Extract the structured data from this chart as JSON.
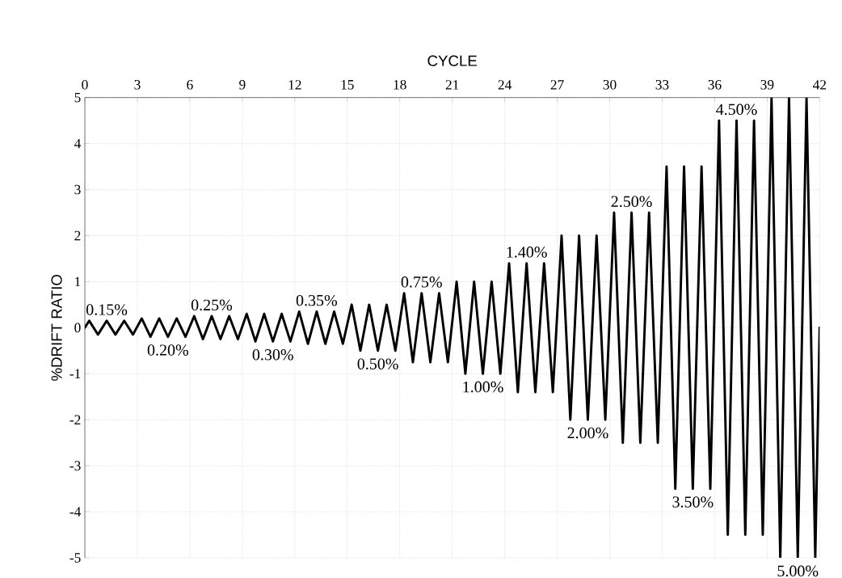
{
  "chart_data": {
    "type": "line",
    "xlabel": "CYCLE",
    "ylabel": "%DRIFT  RATIO",
    "x": [
      0,
      0.25,
      0.75,
      1.25,
      1.75,
      2.25,
      2.75,
      3.25,
      3.75,
      4.25,
      4.75,
      5.25,
      5.75,
      6.25,
      6.75,
      7.25,
      7.75,
      8.25,
      8.75,
      9.25,
      9.75,
      10.25,
      10.75,
      11.25,
      11.75,
      12.25,
      12.75,
      13.25,
      13.75,
      14.25,
      14.75,
      15.25,
      15.75,
      16.25,
      16.75,
      17.25,
      17.75,
      18.25,
      18.75,
      19.25,
      19.75,
      20.25,
      20.75,
      21.25,
      21.75,
      22.25,
      22.75,
      23.25,
      23.75,
      24.25,
      24.75,
      25.25,
      25.75,
      26.25,
      26.75,
      27.25,
      27.75,
      28.25,
      28.75,
      29.25,
      29.75,
      30.25,
      30.75,
      31.25,
      31.75,
      32.25,
      32.75,
      33.25,
      33.75,
      34.25,
      34.75,
      35.25,
      35.75,
      36.25,
      36.75,
      37.25,
      37.75,
      38.25,
      38.75,
      39.25,
      39.75,
      40.25,
      40.75,
      41.25,
      41.75,
      42
    ],
    "series": [
      {
        "color": "#000000",
        "values": [
          0,
          0.15,
          -0.15,
          0.15,
          -0.15,
          0.15,
          -0.15,
          0.2,
          -0.2,
          0.2,
          -0.2,
          0.2,
          -0.2,
          0.25,
          -0.25,
          0.25,
          -0.25,
          0.25,
          -0.25,
          0.3,
          -0.3,
          0.3,
          -0.3,
          0.3,
          -0.3,
          0.35,
          -0.35,
          0.35,
          -0.35,
          0.35,
          -0.35,
          0.5,
          -0.5,
          0.5,
          -0.5,
          0.5,
          -0.5,
          0.75,
          -0.75,
          0.75,
          -0.75,
          0.75,
          -0.75,
          1,
          -1,
          1,
          -1,
          1,
          -1,
          1.4,
          -1.4,
          1.4,
          -1.4,
          1.4,
          -1.4,
          2,
          -2,
          2,
          -2,
          2,
          -2,
          2.5,
          -2.5,
          2.5,
          -2.5,
          2.5,
          -2.5,
          3.5,
          -3.5,
          3.5,
          -3.5,
          3.5,
          -3.5,
          4.5,
          -4.5,
          4.5,
          -4.5,
          4.5,
          -4.5,
          5,
          -5,
          5,
          -5,
          5,
          -5,
          0
        ]
      }
    ],
    "xlim": [
      0,
      42
    ],
    "xticks": [
      0,
      3,
      6,
      9,
      12,
      15,
      18,
      21,
      24,
      27,
      30,
      33,
      36,
      39,
      42
    ],
    "ylim": [
      -5,
      5
    ],
    "yticks": [
      -5,
      -4,
      -3,
      -2,
      -1,
      0,
      1,
      2,
      3,
      4,
      5
    ],
    "grid": true,
    "marker": "none",
    "line_style": "solid",
    "annotations": [
      {
        "text": "0.15%",
        "x": 1.25,
        "y": 0.15
      },
      {
        "text": "0.20%",
        "x": 4.75,
        "y": -0.2
      },
      {
        "text": "0.25%",
        "x": 7.25,
        "y": 0.25
      },
      {
        "text": "0.30%",
        "x": 10.75,
        "y": -0.3
      },
      {
        "text": "0.35%",
        "x": 13.25,
        "y": 0.35
      },
      {
        "text": "0.50%",
        "x": 16.75,
        "y": -0.5
      },
      {
        "text": "0.75%",
        "x": 19.25,
        "y": 0.75
      },
      {
        "text": "1.00%",
        "x": 22.75,
        "y": -1
      },
      {
        "text": "1.40%",
        "x": 25.25,
        "y": 1.4
      },
      {
        "text": "2.00%",
        "x": 28.75,
        "y": -2
      },
      {
        "text": "2.50%",
        "x": 31.25,
        "y": 2.5
      },
      {
        "text": "3.50%",
        "x": 34.75,
        "y": -3.5
      },
      {
        "text": "4.50%",
        "x": 37.25,
        "y": 4.5
      },
      {
        "text": "5.00%",
        "x": 40.75,
        "y": -5
      }
    ]
  }
}
